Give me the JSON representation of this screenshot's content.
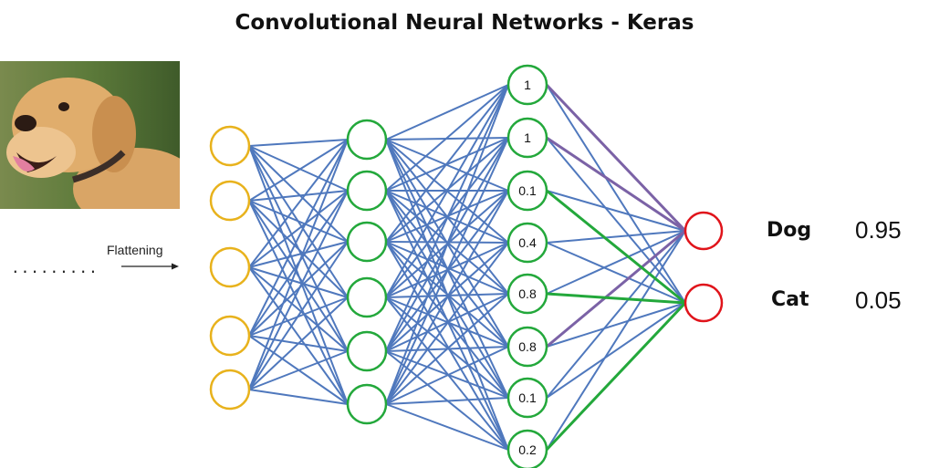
{
  "title": "Convolutional Neural Networks - Keras",
  "flatten_label": "Flattening",
  "dots": ".........",
  "colors": {
    "input": "#e8b21c",
    "hidden": "#23a83b",
    "output": "#e0141b",
    "edge": "#4f78bd",
    "edge_green": "#23a83b",
    "edge_purple": "#7b62a6"
  },
  "hidden2_values": [
    "1",
    "1",
    "0.1",
    "0.4",
    "0.8",
    "0.8",
    "0.1",
    "0.2"
  ],
  "outputs": [
    {
      "label": "Dog",
      "value": "0.95"
    },
    {
      "label": "Cat",
      "value": "0.05"
    }
  ]
}
